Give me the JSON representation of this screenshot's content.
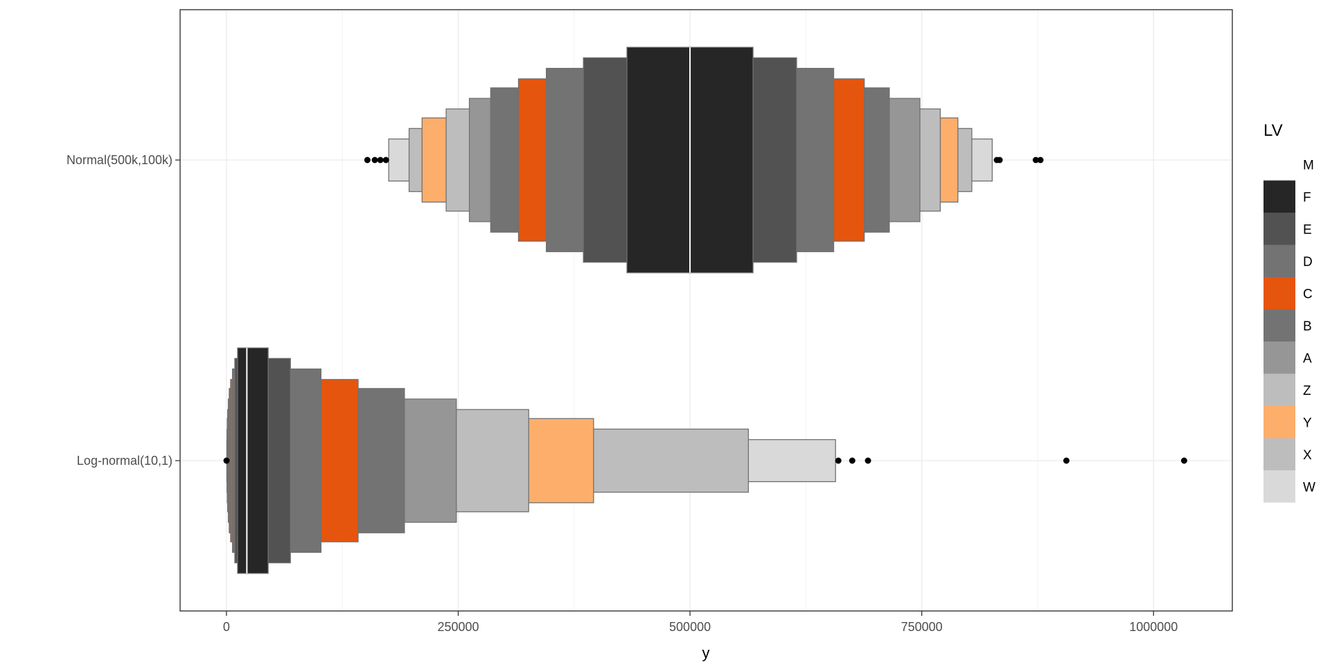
{
  "chart_data": {
    "type": "letter-value",
    "title": "",
    "xlabel": "y",
    "ylabel": "",
    "xlim": [
      -50000,
      1085000
    ],
    "x_ticks": [
      0,
      250000,
      500000,
      750000,
      1000000
    ],
    "x_tick_labels": [
      "0",
      "250000",
      "500000",
      "750000",
      "1000000"
    ],
    "grid": true,
    "categories": [
      "Normal(500k,100k)",
      "Log-normal(10,1)"
    ],
    "legend": {
      "title": "LV",
      "placement": "right",
      "items": [
        {
          "label": "M",
          "color": "#ffffff"
        },
        {
          "label": "F",
          "color": "#262626"
        },
        {
          "label": "E",
          "color": "#525252"
        },
        {
          "label": "D",
          "color": "#737373"
        },
        {
          "label": "C",
          "color": "#e6550d"
        },
        {
          "label": "B",
          "color": "#737373"
        },
        {
          "label": "A",
          "color": "#969696"
        },
        {
          "label": "Z",
          "color": "#bdbdbd"
        },
        {
          "label": "Y",
          "color": "#fdae6b"
        },
        {
          "label": "X",
          "color": "#bdbdbd"
        },
        {
          "label": "W",
          "color": "#d9d9d9"
        }
      ]
    },
    "series": [
      {
        "category": "Normal(500k,100k)",
        "median": 500000,
        "boxes": [
          {
            "lv": "F",
            "lower": 432000,
            "upper": 568000,
            "half_height": 0.375
          },
          {
            "lv": "E",
            "lower": 385000,
            "upper": 615000,
            "half_height": 0.34
          },
          {
            "lv": "D",
            "lower": 345000,
            "upper": 655000,
            "half_height": 0.305
          },
          {
            "lv": "C",
            "lower": 315000,
            "upper": 688000,
            "half_height": 0.27
          },
          {
            "lv": "B",
            "lower": 285000,
            "upper": 715000,
            "half_height": 0.24
          },
          {
            "lv": "A",
            "lower": 262000,
            "upper": 748000,
            "half_height": 0.205
          },
          {
            "lv": "Z",
            "lower": 237000,
            "upper": 770000,
            "half_height": 0.17
          },
          {
            "lv": "Y",
            "lower": 211000,
            "upper": 789000,
            "half_height": 0.14
          },
          {
            "lv": "X",
            "lower": 197000,
            "upper": 804000,
            "half_height": 0.105
          },
          {
            "lv": "W",
            "lower": 175000,
            "upper": 826000,
            "half_height": 0.07
          }
        ],
        "outliers": [
          152000,
          160000,
          166000,
          172000,
          831000,
          834000,
          873000,
          878000
        ]
      },
      {
        "category": "Log-normal(10,1)",
        "median": 22000,
        "boxes": [
          {
            "lv": "F",
            "lower": 12000,
            "upper": 45000,
            "half_height": 0.375
          },
          {
            "lv": "E",
            "lower": 9000,
            "upper": 69000,
            "half_height": 0.34
          },
          {
            "lv": "D",
            "lower": 6500,
            "upper": 102000,
            "half_height": 0.305
          },
          {
            "lv": "C",
            "lower": 4500,
            "upper": 142000,
            "half_height": 0.27
          },
          {
            "lv": "B",
            "lower": 3000,
            "upper": 192000,
            "half_height": 0.24
          },
          {
            "lv": "A",
            "lower": 2000,
            "upper": 248000,
            "half_height": 0.205
          },
          {
            "lv": "Z",
            "lower": 1300,
            "upper": 326000,
            "half_height": 0.17
          },
          {
            "lv": "Y",
            "lower": 900,
            "upper": 396000,
            "half_height": 0.14
          },
          {
            "lv": "X",
            "lower": 600,
            "upper": 563000,
            "half_height": 0.105
          },
          {
            "lv": "W",
            "lower": 400,
            "upper": 657000,
            "half_height": 0.07
          }
        ],
        "outliers": [
          100,
          660000,
          675000,
          692000,
          906000,
          1033000
        ]
      }
    ]
  }
}
